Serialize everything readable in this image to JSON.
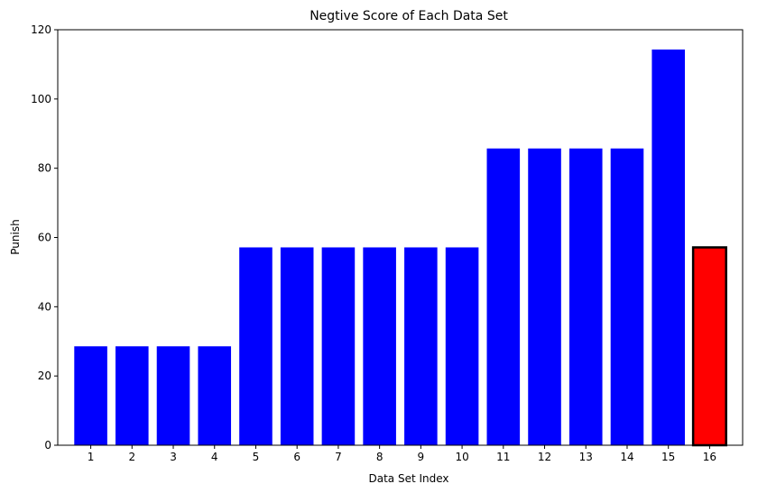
{
  "chart_data": {
    "type": "bar",
    "title": "Negtive Score of Each Data Set",
    "xlabel": "Data Set Index",
    "ylabel": "Punish",
    "categories": [
      "1",
      "2",
      "3",
      "4",
      "5",
      "6",
      "7",
      "8",
      "9",
      "10",
      "11",
      "12",
      "13",
      "14",
      "15",
      "16"
    ],
    "values": [
      28.57,
      28.57,
      28.57,
      28.57,
      57.14,
      57.14,
      57.14,
      57.14,
      57.14,
      57.14,
      85.71,
      85.71,
      85.71,
      85.71,
      114.29,
      57.14
    ],
    "ylim": [
      0,
      120
    ],
    "yticks": [
      0,
      20,
      40,
      60,
      80,
      100,
      120
    ],
    "grid": false,
    "colors": {
      "default_bar": "#0000ff",
      "highlight_bar": "#ff0000",
      "highlight_edge": "#000000"
    },
    "highlight_index": 15
  }
}
